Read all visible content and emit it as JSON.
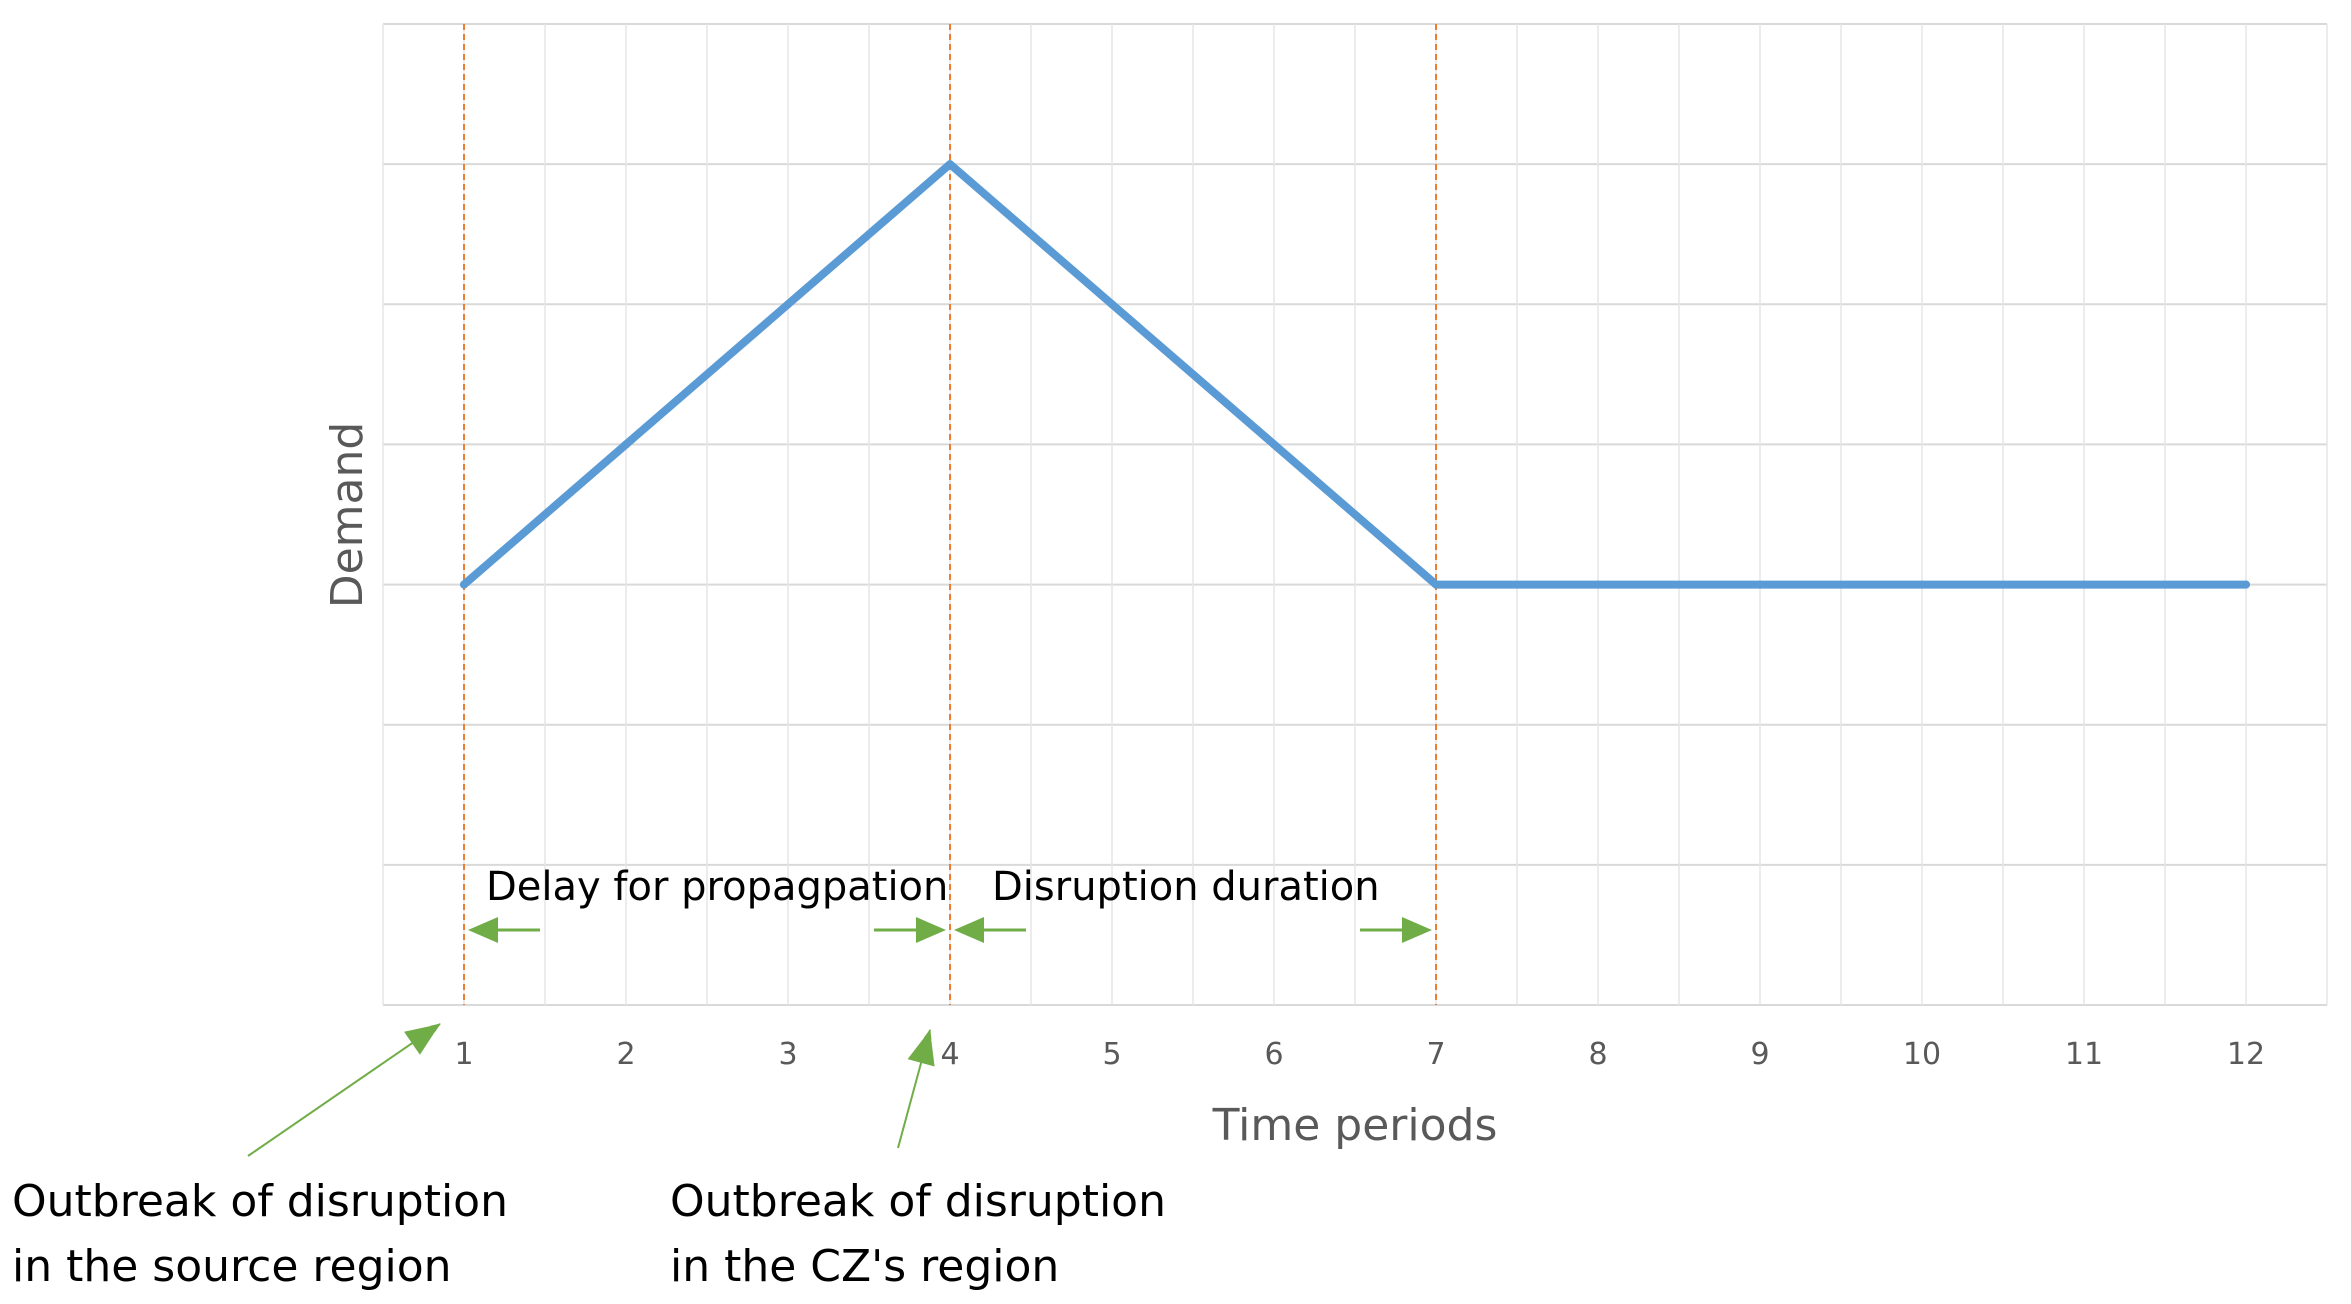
{
  "chart_data": {
    "type": "line",
    "title": "",
    "xlabel": "Time periods",
    "ylabel": "Demand",
    "x": [
      1,
      2,
      3,
      4,
      5,
      6,
      7,
      8,
      9,
      10,
      11,
      12
    ],
    "xlim": [
      0.5,
      12.5
    ],
    "ylim": [
      0,
      7
    ],
    "y_tick_labels_shown": false,
    "grid": true,
    "minor_x_grid": true,
    "legend": "none",
    "series": [
      {
        "values": [
          3,
          4,
          5,
          6,
          5,
          4,
          3,
          3,
          3,
          3,
          3,
          3
        ],
        "color": "#5B9BD5"
      }
    ],
    "vertical_markers": [
      {
        "x": 1,
        "style": "dashed",
        "color": "#ED7D31"
      },
      {
        "x": 4,
        "style": "dashed",
        "color": "#ED7D31"
      },
      {
        "x": 7,
        "style": "dashed",
        "color": "#ED7D31"
      }
    ],
    "span_annotations": [
      {
        "text": "Delay for propagpation",
        "from": 1,
        "to": 4,
        "arrow_color": "#70AD47"
      },
      {
        "text": "Disruption duration",
        "from": 4,
        "to": 7,
        "arrow_color": "#70AD47"
      }
    ],
    "callouts": [
      {
        "lines": [
          "Outbreak of disruption",
          "in the source region"
        ],
        "points_to_x": 1
      },
      {
        "lines": [
          "Outbreak of disruption",
          "in the CZ's region"
        ],
        "points_to_x": 4
      }
    ]
  },
  "colors": {
    "line": "#5B9BD5",
    "marker": "#ED7D31",
    "arrow": "#70AD47",
    "grid": "#D9D9D9",
    "axis_text": "#595959"
  }
}
